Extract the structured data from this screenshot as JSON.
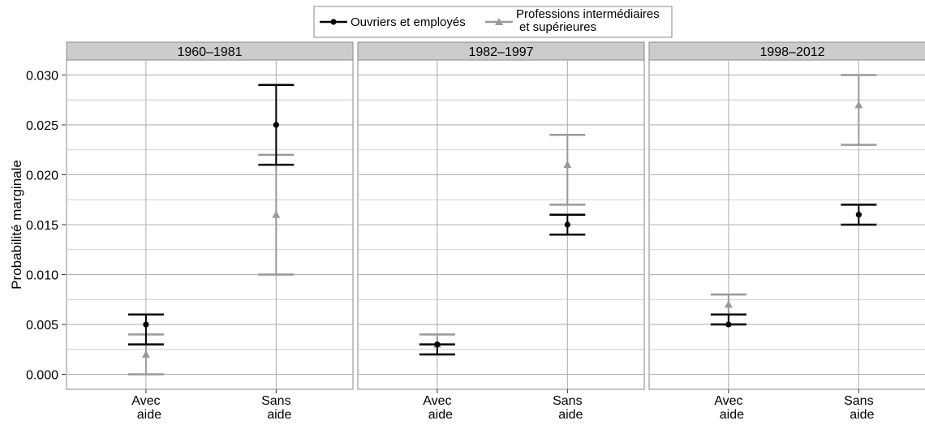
{
  "chart_data": {
    "type": "errorbar",
    "ylabel": "Probabilité marginale",
    "ylim": [
      -0.0015,
      0.0315
    ],
    "yticks": [
      "0.000",
      "0.005",
      "0.010",
      "0.015",
      "0.020",
      "0.025",
      "0.030"
    ],
    "categories": [
      "Avec\naide",
      "Sans\naide"
    ],
    "grid": true,
    "legend_position": "top",
    "colors": {
      "series_1": "#000000",
      "series_2": "#999999",
      "strip": "#cccccc",
      "grid": "#b3b3b3"
    },
    "series": [
      {
        "name": "Ouvriers et employés",
        "marker": "circle"
      },
      {
        "name": "Professions intermédiaires\net supérieures",
        "marker": "triangle"
      }
    ],
    "panels": [
      {
        "label": "1960–1981",
        "data": [
          {
            "series": 0,
            "category": 0,
            "y": 0.005,
            "low": 0.003,
            "high": 0.006
          },
          {
            "series": 1,
            "category": 0,
            "y": 0.002,
            "low": 0.0,
            "high": 0.004
          },
          {
            "series": 0,
            "category": 1,
            "y": 0.025,
            "low": 0.021,
            "high": 0.029
          },
          {
            "series": 1,
            "category": 1,
            "y": 0.016,
            "low": 0.01,
            "high": 0.022
          }
        ]
      },
      {
        "label": "1982–1997",
        "data": [
          {
            "series": 0,
            "category": 0,
            "y": 0.003,
            "low": 0.002,
            "high": 0.003
          },
          {
            "series": 1,
            "category": 0,
            "y": 0.003,
            "low": 0.002,
            "high": 0.004
          },
          {
            "series": 0,
            "category": 1,
            "y": 0.015,
            "low": 0.014,
            "high": 0.016
          },
          {
            "series": 1,
            "category": 1,
            "y": 0.021,
            "low": 0.017,
            "high": 0.024
          }
        ]
      },
      {
        "label": "1998–2012",
        "data": [
          {
            "series": 0,
            "category": 0,
            "y": 0.005,
            "low": 0.005,
            "high": 0.006
          },
          {
            "series": 1,
            "category": 0,
            "y": 0.007,
            "low": 0.005,
            "high": 0.008
          },
          {
            "series": 0,
            "category": 1,
            "y": 0.016,
            "low": 0.015,
            "high": 0.017
          },
          {
            "series": 1,
            "category": 1,
            "y": 0.027,
            "low": 0.023,
            "high": 0.03
          }
        ]
      }
    ]
  }
}
